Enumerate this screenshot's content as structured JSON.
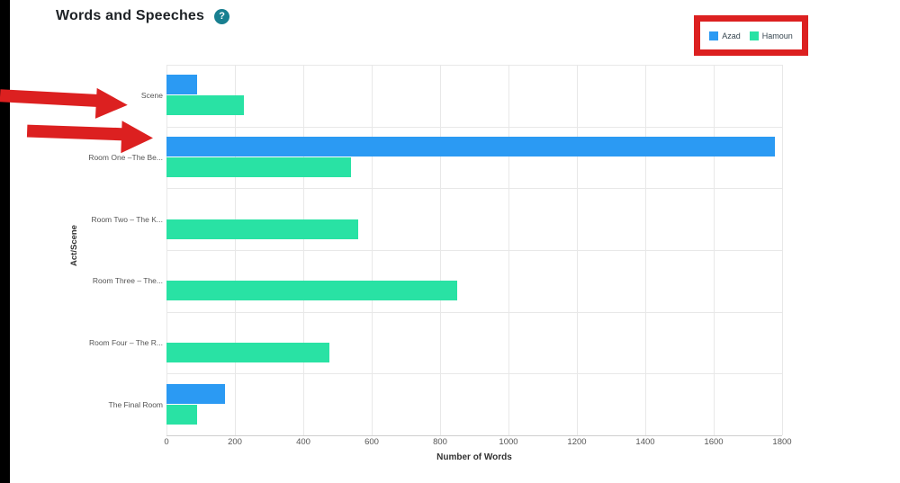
{
  "page": {
    "title": "Words and Speeches",
    "help_glyph": "?",
    "help_color": "#187f90"
  },
  "legend": {
    "items": [
      {
        "label": "Azad",
        "color": "#2b9af3"
      },
      {
        "label": "Hamoun",
        "color": "#29e2a4"
      }
    ]
  },
  "annotations": {
    "color": "#dc2020",
    "box_target": "legend",
    "arrows": [
      {
        "points_at": "Scene row",
        "direction": "right"
      },
      {
        "points_at": "Room One Azad bar",
        "direction": "right"
      }
    ]
  },
  "chart_data": {
    "type": "bar",
    "orientation": "horizontal",
    "title": "Words and Speeches",
    "xlabel": "Number of Words",
    "ylabel": "Act/Scene",
    "categories": [
      "Scene",
      "Room One –The Be...",
      "Room Two – The K...",
      "Room Three – The...",
      "Room Four – The R...",
      "The Final Room"
    ],
    "series": [
      {
        "name": "Azad",
        "color": "#2b9af3",
        "values": [
          90,
          1780,
          0,
          0,
          0,
          170
        ]
      },
      {
        "name": "Hamoun",
        "color": "#29e2a4",
        "values": [
          225,
          540,
          560,
          850,
          475,
          90
        ]
      }
    ],
    "xlim": [
      0,
      1800
    ],
    "xticks": [
      0,
      200,
      400,
      600,
      800,
      1000,
      1200,
      1400,
      1600,
      1800
    ],
    "grid": true,
    "legend_position": "top-right"
  }
}
